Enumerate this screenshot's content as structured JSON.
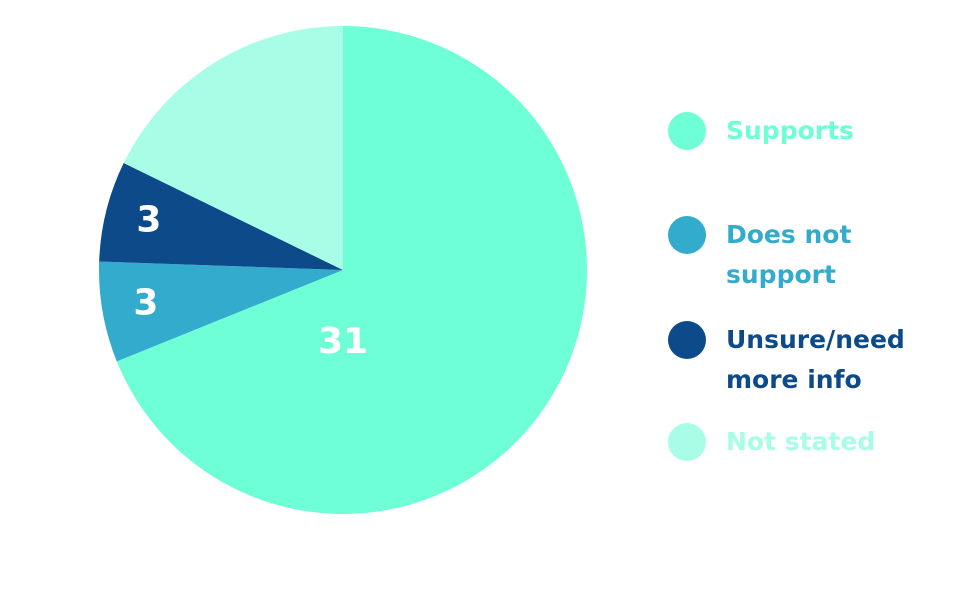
{
  "chart_data": {
    "type": "pie",
    "categories": [
      "Supports",
      "Does not support",
      "Unsure/need more info",
      "Not stated"
    ],
    "values": [
      31,
      3,
      3,
      8
    ],
    "value_labels": [
      "31",
      "3",
      "3",
      null
    ],
    "colors": [
      "#6effd6",
      "#33abcc",
      "#0c4a8a",
      "#a8fde6"
    ],
    "legend": "right"
  }
}
